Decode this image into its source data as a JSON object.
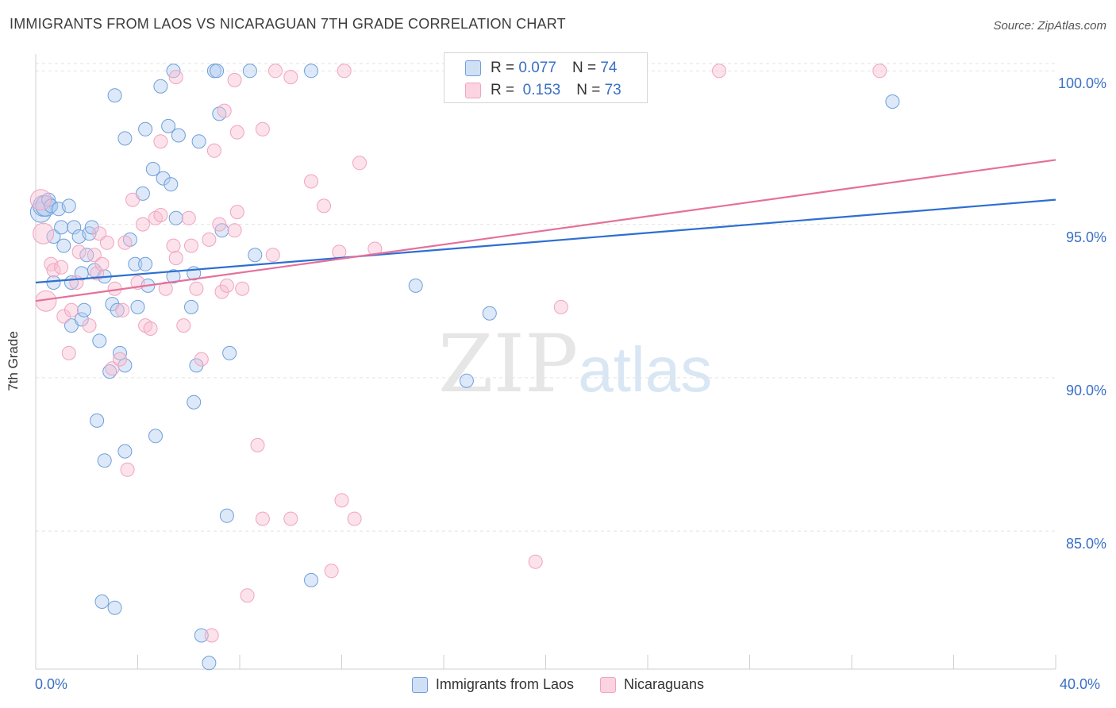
{
  "title": "IMMIGRANTS FROM LAOS VS NICARAGUAN 7TH GRADE CORRELATION CHART",
  "source": "Source: ZipAtlas.com",
  "watermark": {
    "zip": "ZIP",
    "atlas": "atlas"
  },
  "stats": [
    {
      "r_label": "R =",
      "r": "0.077",
      "n_label": "N =",
      "n": "74",
      "color": "#6f9fdc"
    },
    {
      "r_label": "R =",
      "r": "0.153",
      "n_label": "N =",
      "n": "73",
      "color": "#f0a4bf"
    }
  ],
  "chart_data": {
    "type": "scatter",
    "title": "IMMIGRANTS FROM LAOS VS NICARAGUAN 7TH GRADE CORRELATION CHART",
    "xlabel": "",
    "ylabel": "7th Grade",
    "xlim": [
      0,
      40
    ],
    "ylim": [
      80.5,
      100.5
    ],
    "x_tick_labels": [
      "0.0%",
      "40.0%"
    ],
    "y_ticks": [
      85,
      90,
      95,
      100
    ],
    "y_tick_labels": [
      "85.0%",
      "90.0%",
      "95.0%",
      "100.0%"
    ],
    "grid": true,
    "legend_position": "bottom",
    "series": [
      {
        "name": "Immigrants from Laos",
        "color": "#6f9fdc",
        "trend": {
          "x": [
            0,
            40
          ],
          "y": [
            93.1,
            95.8
          ]
        },
        "points": [
          [
            0.2,
            95.4
          ],
          [
            0.3,
            95.6
          ],
          [
            0.4,
            95.6
          ],
          [
            0.5,
            95.8
          ],
          [
            0.6,
            95.6
          ],
          [
            0.7,
            94.6
          ],
          [
            0.7,
            93.1
          ],
          [
            0.9,
            95.5
          ],
          [
            1.0,
            94.9
          ],
          [
            1.1,
            94.3
          ],
          [
            1.3,
            95.6
          ],
          [
            1.4,
            91.7
          ],
          [
            1.4,
            93.1
          ],
          [
            1.5,
            94.9
          ],
          [
            1.7,
            94.6
          ],
          [
            1.8,
            91.9
          ],
          [
            1.8,
            93.4
          ],
          [
            1.9,
            92.2
          ],
          [
            2.1,
            94.7
          ],
          [
            2.2,
            94.9
          ],
          [
            2.3,
            93.5
          ],
          [
            2.4,
            88.6
          ],
          [
            2.5,
            91.2
          ],
          [
            2.6,
            82.7
          ],
          [
            2.7,
            93.3
          ],
          [
            2.7,
            87.3
          ],
          [
            2.9,
            90.2
          ],
          [
            3.0,
            92.4
          ],
          [
            3.1,
            82.5
          ],
          [
            3.2,
            92.2
          ],
          [
            3.3,
            90.8
          ],
          [
            3.5,
            90.4
          ],
          [
            3.5,
            87.6
          ],
          [
            3.7,
            94.5
          ],
          [
            3.9,
            93.7
          ],
          [
            4.0,
            92.3
          ],
          [
            4.2,
            96.0
          ],
          [
            4.3,
            93.7
          ],
          [
            4.4,
            93.0
          ],
          [
            4.7,
            88.1
          ],
          [
            5.0,
            96.5
          ],
          [
            5.2,
            98.2
          ],
          [
            5.3,
            96.3
          ],
          [
            5.4,
            93.3
          ],
          [
            5.6,
            97.9
          ],
          [
            6.2,
            93.4
          ],
          [
            6.1,
            92.3
          ],
          [
            6.2,
            89.2
          ],
          [
            6.3,
            90.4
          ],
          [
            6.5,
            81.6
          ],
          [
            6.8,
            80.7
          ],
          [
            7.0,
            100.0
          ],
          [
            7.2,
            98.6
          ],
          [
            7.3,
            94.8
          ],
          [
            7.5,
            85.5
          ],
          [
            7.6,
            90.8
          ],
          [
            8.6,
            94.0
          ],
          [
            10.8,
            83.4
          ],
          [
            14.9,
            93.0
          ],
          [
            16.9,
            89.9
          ],
          [
            17.8,
            92.1
          ],
          [
            33.6,
            99.0
          ],
          [
            3.1,
            99.2
          ],
          [
            3.5,
            97.8
          ],
          [
            4.3,
            98.1
          ],
          [
            4.9,
            99.5
          ],
          [
            5.4,
            100.0
          ],
          [
            6.4,
            97.7
          ],
          [
            7.1,
            100.0
          ],
          [
            8.4,
            100.0
          ],
          [
            10.8,
            100.0
          ],
          [
            4.6,
            96.8
          ],
          [
            5.5,
            95.2
          ],
          [
            2.0,
            94.0
          ]
        ]
      },
      {
        "name": "Nicaraguans",
        "color": "#f0a4bf",
        "trend": {
          "x": [
            0,
            40
          ],
          "y": [
            92.5,
            97.1
          ]
        },
        "points": [
          [
            0.2,
            95.8
          ],
          [
            0.3,
            94.7
          ],
          [
            0.4,
            92.5
          ],
          [
            0.6,
            93.7
          ],
          [
            0.7,
            93.5
          ],
          [
            1.0,
            93.6
          ],
          [
            1.1,
            92.0
          ],
          [
            1.3,
            90.8
          ],
          [
            1.4,
            92.2
          ],
          [
            1.6,
            93.1
          ],
          [
            1.7,
            94.1
          ],
          [
            2.1,
            91.7
          ],
          [
            2.3,
            94.0
          ],
          [
            2.4,
            93.4
          ],
          [
            2.5,
            94.7
          ],
          [
            2.6,
            93.7
          ],
          [
            2.8,
            94.4
          ],
          [
            3.0,
            90.3
          ],
          [
            3.1,
            92.9
          ],
          [
            3.3,
            90.6
          ],
          [
            3.4,
            92.2
          ],
          [
            3.5,
            94.4
          ],
          [
            3.6,
            87.0
          ],
          [
            3.8,
            95.8
          ],
          [
            4.0,
            93.1
          ],
          [
            4.2,
            95.0
          ],
          [
            4.3,
            91.7
          ],
          [
            4.5,
            91.6
          ],
          [
            4.7,
            95.2
          ],
          [
            4.9,
            95.3
          ],
          [
            5.1,
            92.9
          ],
          [
            5.4,
            94.3
          ],
          [
            5.5,
            93.9
          ],
          [
            5.8,
            91.7
          ],
          [
            6.0,
            95.2
          ],
          [
            6.1,
            94.3
          ],
          [
            6.3,
            92.9
          ],
          [
            6.5,
            90.6
          ],
          [
            6.8,
            94.5
          ],
          [
            6.9,
            81.6
          ],
          [
            7.2,
            95.0
          ],
          [
            7.3,
            92.8
          ],
          [
            7.5,
            93.0
          ],
          [
            7.8,
            94.8
          ],
          [
            7.9,
            95.4
          ],
          [
            8.1,
            92.9
          ],
          [
            8.3,
            82.9
          ],
          [
            8.7,
            87.8
          ],
          [
            8.9,
            85.4
          ],
          [
            9.3,
            94.0
          ],
          [
            10.0,
            85.4
          ],
          [
            10.8,
            96.4
          ],
          [
            11.3,
            95.6
          ],
          [
            11.6,
            83.7
          ],
          [
            11.9,
            94.1
          ],
          [
            12.0,
            86.0
          ],
          [
            12.5,
            85.4
          ],
          [
            12.7,
            97.0
          ],
          [
            13.3,
            94.2
          ],
          [
            19.6,
            84.0
          ],
          [
            20.6,
            92.3
          ],
          [
            4.9,
            97.7
          ],
          [
            5.5,
            99.8
          ],
          [
            7.0,
            97.4
          ],
          [
            7.4,
            98.7
          ],
          [
            7.9,
            98.0
          ],
          [
            8.9,
            98.1
          ],
          [
            9.4,
            100.0
          ],
          [
            10.0,
            99.8
          ],
          [
            12.1,
            100.0
          ],
          [
            26.8,
            100.0
          ],
          [
            33.1,
            100.0
          ],
          [
            7.8,
            99.7
          ]
        ]
      }
    ]
  }
}
